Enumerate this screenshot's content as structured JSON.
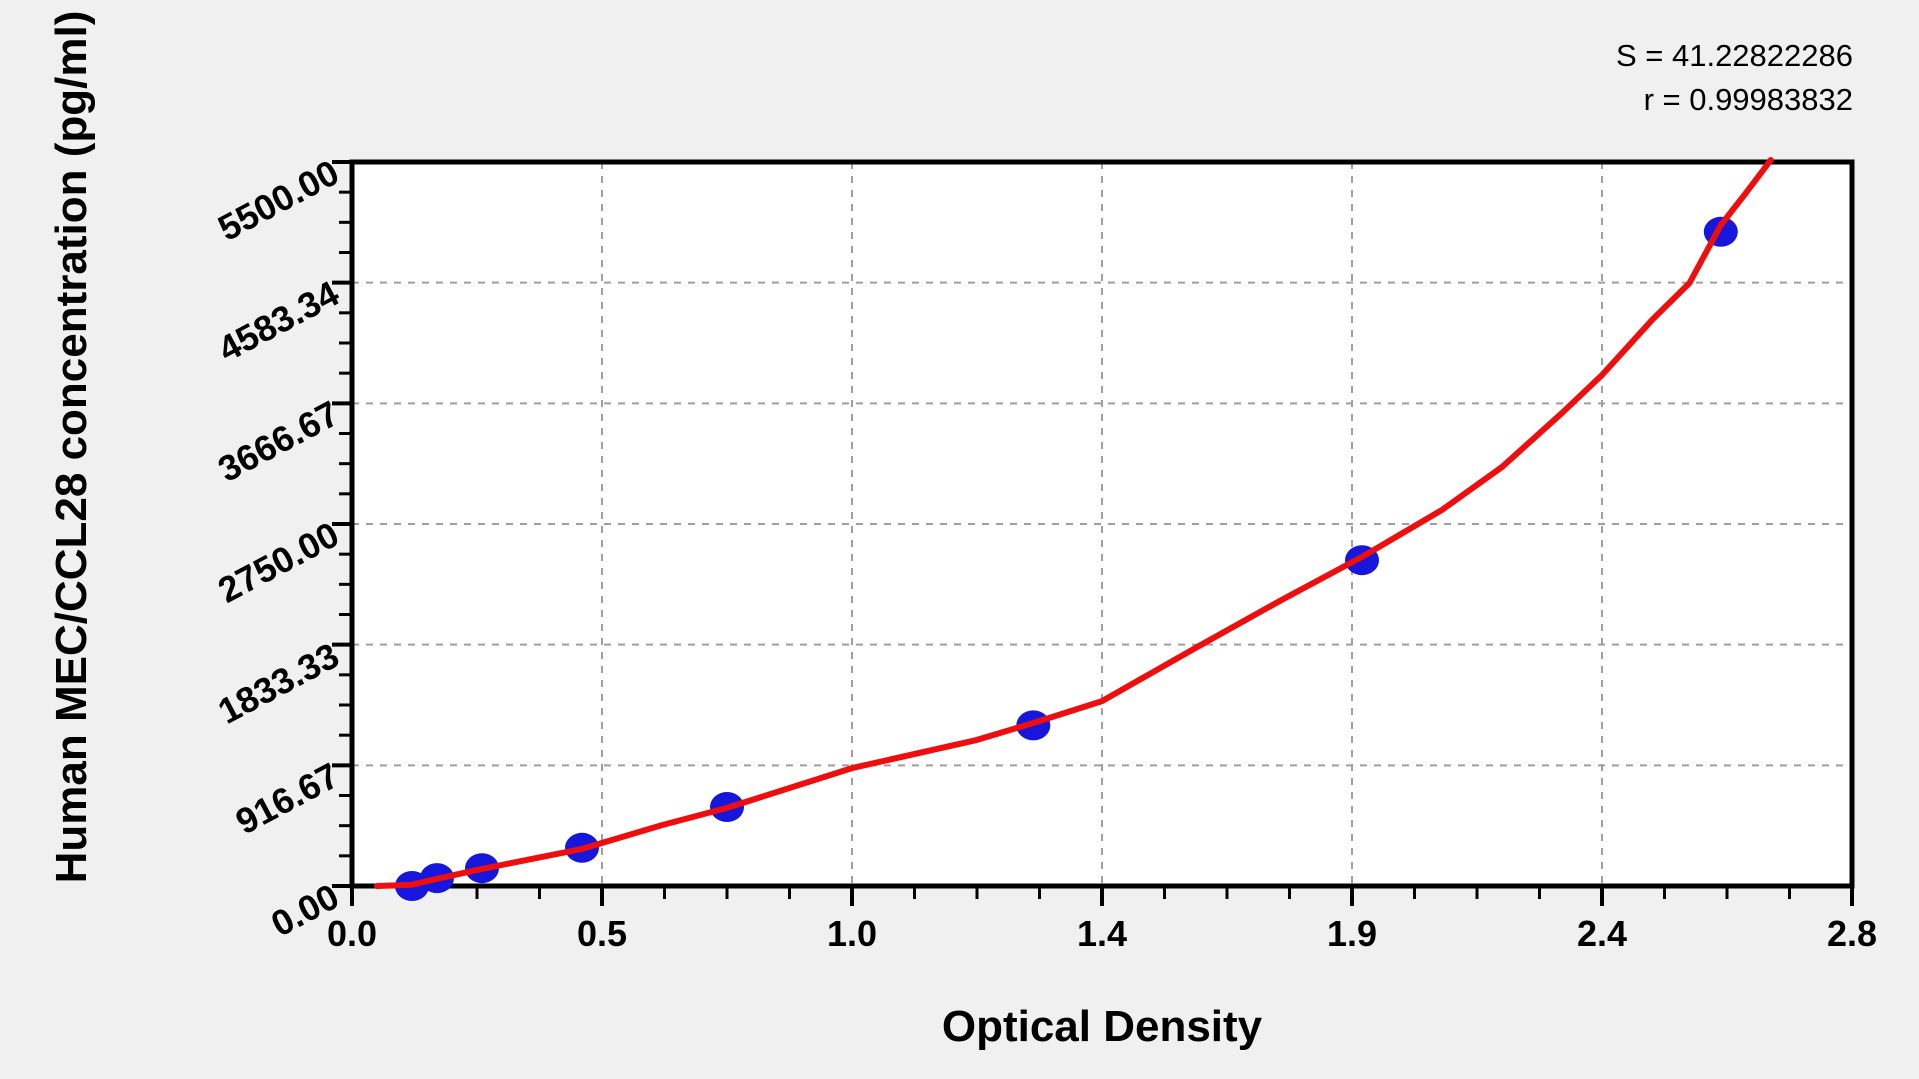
{
  "chart_data": {
    "type": "scatter",
    "title": "",
    "xlabel": "Optical Density",
    "ylabel": "Human MEC/CCL28 concentration (pg/ml)",
    "stats": {
      "s": "S = 41.22822286",
      "r": "r = 0.99983832"
    },
    "x_axis": {
      "tick_values": [
        0.0,
        0.5,
        1.0,
        1.4,
        1.9,
        2.4,
        2.8
      ],
      "tick_labels": [
        "0.0",
        "0.5",
        "1.0",
        "1.4",
        "1.9",
        "2.4",
        "2.8"
      ],
      "minor_ticks_per_interval": 3,
      "spacing_note": "tick values are equally spaced in pixels (piecewise-linear axis)"
    },
    "y_axis": {
      "tick_values": [
        0,
        916.67,
        1833.33,
        2750.0,
        3666.67,
        4583.34,
        5500.0
      ],
      "tick_labels": [
        "0.00",
        "916.67",
        "1833.33",
        "2750.00",
        "3666.67",
        "4583.34",
        "5500.00"
      ],
      "minor_ticks_per_interval": 3,
      "range": [
        0,
        5500
      ]
    },
    "grid": {
      "style": "dashed",
      "at": "major-ticks",
      "on": true
    },
    "legend": {
      "shown": false
    },
    "points": [
      {
        "od": 0.12,
        "conc": 0
      },
      {
        "od": 0.17,
        "conc": 60
      },
      {
        "od": 0.26,
        "conc": 135
      },
      {
        "od": 0.46,
        "conc": 290
      },
      {
        "od": 0.75,
        "conc": 600
      },
      {
        "od": 1.29,
        "conc": 1220
      },
      {
        "od": 1.92,
        "conc": 2475
      },
      {
        "od": 2.59,
        "conc": 4970
      }
    ],
    "curve": [
      [
        0.05,
        0
      ],
      [
        0.12,
        10
      ],
      [
        0.17,
        55
      ],
      [
        0.26,
        130
      ],
      [
        0.46,
        282
      ],
      [
        0.62,
        463
      ],
      [
        0.75,
        593
      ],
      [
        1.0,
        896
      ],
      [
        1.2,
        1110
      ],
      [
        1.29,
        1238
      ],
      [
        1.4,
        1405
      ],
      [
        1.59,
        1815
      ],
      [
        1.76,
        2175
      ],
      [
        1.92,
        2500
      ],
      [
        2.08,
        2857
      ],
      [
        2.2,
        3183
      ],
      [
        2.32,
        3593
      ],
      [
        2.4,
        3882
      ],
      [
        2.48,
        4300
      ],
      [
        2.54,
        4581
      ],
      [
        2.59,
        5021
      ],
      [
        2.63,
        5264
      ],
      [
        2.67,
        5515
      ]
    ],
    "colors": {
      "curve": "#ee0e0e",
      "marker": "#1616dd",
      "grid": "#9f9f9f",
      "axis": "#000000",
      "plot_bg": "#ffffff",
      "page_bg": "#f0f0f0"
    }
  }
}
